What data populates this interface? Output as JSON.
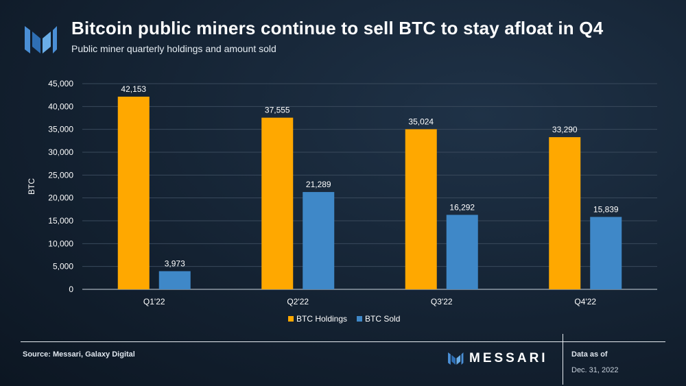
{
  "header": {
    "title": "Bitcoin public miners continue to sell BTC to stay afloat in Q4",
    "subtitle": "Public miner quarterly holdings and amount sold"
  },
  "footer": {
    "source": "Source: Messari, Galaxy Digital",
    "brand": "MESSARI",
    "as_of_label": "Data as of",
    "as_of_date": "Dec. 31, 2022"
  },
  "colors": {
    "holdings": "#FFA800",
    "sold": "#3F88C8",
    "grid": "#3a4a5c",
    "axis": "#cfd8e0"
  },
  "chart_data": {
    "type": "bar",
    "title": "",
    "xlabel": "",
    "ylabel": "BTC",
    "categories": [
      "Q1'22",
      "Q2'22",
      "Q3'22",
      "Q4'22"
    ],
    "series": [
      {
        "name": "BTC Holdings",
        "values": [
          42153,
          37555,
          35024,
          33290
        ],
        "labels": [
          "42,153",
          "37,555",
          "35,024",
          "33,290"
        ]
      },
      {
        "name": "BTC Sold",
        "values": [
          3973,
          21289,
          16292,
          15839
        ],
        "labels": [
          "3,973",
          "21,289",
          "16,292",
          "15,839"
        ]
      }
    ],
    "ylim": [
      0,
      45000
    ],
    "yticks": [
      0,
      5000,
      10000,
      15000,
      20000,
      25000,
      30000,
      35000,
      40000,
      45000
    ],
    "ytick_labels": [
      "0",
      "5,000",
      "10,000",
      "15,000",
      "20,000",
      "25,000",
      "30,000",
      "35,000",
      "40,000",
      "45,000"
    ],
    "grid": true,
    "legend_position": "bottom-center"
  }
}
